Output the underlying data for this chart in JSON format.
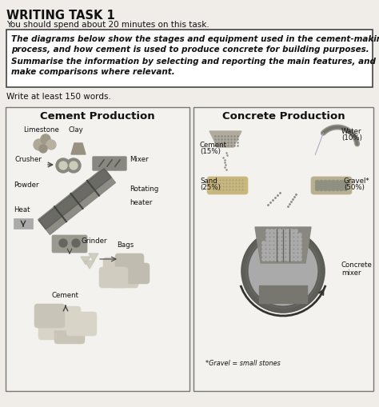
{
  "title": "WRITING TASK 1",
  "subtitle": "You should spend about 20 minutes on this task.",
  "box_line1": "The diagrams below show the stages and equipment used in the cement-making",
  "box_line2": "process, and how cement is used to produce concrete for building purposes.",
  "box_line3": "Summarise the information by selecting and reporting the main features, and",
  "box_line4": "make comparisons where relevant.",
  "footer": "Write at least 150 words.",
  "d1_title": "Cement Production",
  "d2_title": "Concrete Production",
  "bg": "#f0ede8",
  "panel_bg": "#f0ede8",
  "text_dark": "#111111",
  "box_bg": "#ffffff",
  "panel_edge": "#888888",
  "footnote": "*Gravel = small stones"
}
